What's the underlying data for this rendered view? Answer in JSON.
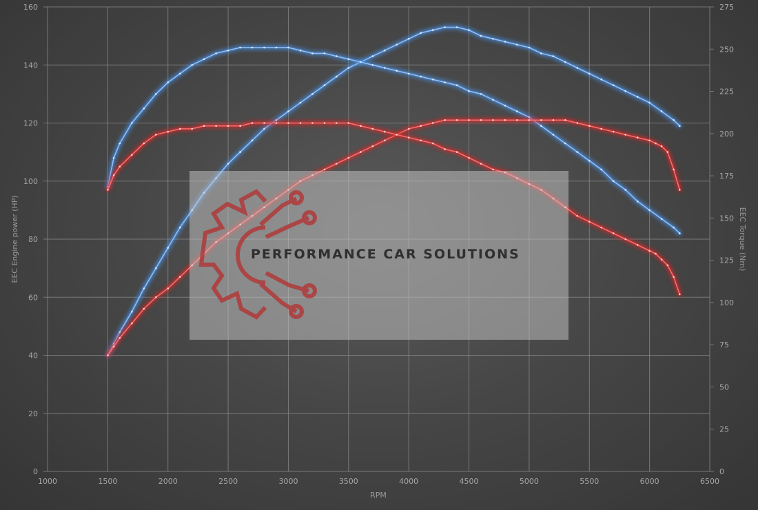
{
  "chart_data": {
    "type": "line",
    "title": "",
    "xlabel": "RPM",
    "ylabel_left": "EEC Engine power (HP)",
    "ylabel_right": "EEC Torque (Nm)",
    "xlim": [
      1000,
      6500
    ],
    "ylim_left": [
      0,
      160
    ],
    "ylim_right": [
      0,
      275
    ],
    "x_ticks": [
      "1000",
      "1500",
      "2000",
      "2500",
      "3000",
      "3500",
      "4000",
      "4500",
      "5000",
      "5500",
      "6000",
      "6500"
    ],
    "y_ticks_left": [
      "0",
      "20",
      "40",
      "60",
      "80",
      "100",
      "120",
      "140",
      "160"
    ],
    "y_ticks_right": [
      "0",
      "25",
      "50",
      "75",
      "100",
      "125",
      "150",
      "175",
      "200",
      "225",
      "250",
      "275"
    ],
    "grid": true,
    "legend": "none",
    "series": [
      {
        "axis": "left",
        "color": "#4a8ee0",
        "x": [
          1500,
          1550,
          1600,
          1700,
          1800,
          1900,
          2000,
          2100,
          2200,
          2300,
          2400,
          2500,
          2600,
          2700,
          2800,
          2900,
          3000,
          3100,
          3200,
          3300,
          3400,
          3500,
          3600,
          3700,
          3800,
          3900,
          4000,
          4100,
          4200,
          4300,
          4400,
          4500,
          4600,
          4700,
          4800,
          4900,
          5000,
          5100,
          5200,
          5300,
          5400,
          5500,
          5600,
          5700,
          5800,
          5900,
          6000,
          6100,
          6200,
          6250
        ],
        "y": [
          40,
          44,
          48,
          55,
          63,
          70,
          77,
          84,
          90,
          96,
          101,
          106,
          110,
          114,
          118,
          121,
          124,
          127,
          130,
          133,
          136,
          139,
          141,
          143,
          145,
          147,
          149,
          151,
          152,
          153,
          153,
          152,
          150,
          149,
          148,
          147,
          146,
          144,
          143,
          141,
          139,
          137,
          135,
          133,
          131,
          129,
          127,
          124,
          121,
          119
        ]
      },
      {
        "axis": "left",
        "color": "#4a8ee0",
        "x": [
          1500,
          1550,
          1600,
          1700,
          1800,
          1900,
          2000,
          2100,
          2200,
          2300,
          2400,
          2500,
          2600,
          2700,
          2800,
          2900,
          3000,
          3100,
          3200,
          3300,
          3400,
          3500,
          3600,
          3700,
          3800,
          3900,
          4000,
          4100,
          4200,
          4300,
          4400,
          4500,
          4600,
          4700,
          4800,
          4900,
          5000,
          5100,
          5200,
          5300,
          5400,
          5500,
          5600,
          5700,
          5800,
          5900,
          6000,
          6100,
          6200,
          6250
        ],
        "y": [
          98,
          108,
          113,
          120,
          125,
          130,
          134,
          137,
          140,
          142,
          144,
          145,
          146,
          146,
          146,
          146,
          146,
          145,
          144,
          144,
          143,
          142,
          141,
          140,
          139,
          138,
          137,
          136,
          135,
          134,
          133,
          131,
          130,
          128,
          126,
          124,
          122,
          119,
          116,
          113,
          110,
          107,
          104,
          100,
          97,
          93,
          90,
          87,
          84,
          82
        ]
      },
      {
        "axis": "left",
        "color": "#d42a2a",
        "x": [
          1500,
          1550,
          1600,
          1700,
          1800,
          1900,
          2000,
          2100,
          2200,
          2300,
          2400,
          2500,
          2600,
          2700,
          2800,
          2900,
          3000,
          3100,
          3200,
          3300,
          3400,
          3500,
          3600,
          3700,
          3800,
          3900,
          4000,
          4100,
          4200,
          4300,
          4400,
          4500,
          4600,
          4700,
          4800,
          4900,
          5000,
          5100,
          5200,
          5300,
          5400,
          5500,
          5600,
          5700,
          5800,
          5900,
          6000,
          6050,
          6100,
          6150,
          6200,
          6250
        ],
        "y": [
          40,
          43,
          46,
          51,
          56,
          60,
          63,
          67,
          71,
          75,
          79,
          82,
          85,
          88,
          91,
          94,
          97,
          100,
          102,
          104,
          106,
          108,
          110,
          112,
          114,
          116,
          118,
          119,
          120,
          121,
          121,
          121,
          121,
          121,
          121,
          121,
          121,
          121,
          121,
          121,
          120,
          119,
          118,
          117,
          116,
          115,
          114,
          113,
          112,
          110,
          104,
          97
        ]
      },
      {
        "axis": "left",
        "color": "#d42a2a",
        "x": [
          1500,
          1550,
          1600,
          1700,
          1800,
          1900,
          2000,
          2100,
          2200,
          2300,
          2400,
          2500,
          2600,
          2700,
          2800,
          2900,
          3000,
          3100,
          3200,
          3300,
          3400,
          3500,
          3600,
          3700,
          3800,
          3900,
          4000,
          4100,
          4200,
          4300,
          4400,
          4500,
          4600,
          4700,
          4800,
          4900,
          5000,
          5100,
          5200,
          5300,
          5400,
          5500,
          5600,
          5700,
          5800,
          5900,
          6000,
          6050,
          6100,
          6150,
          6200,
          6250
        ],
        "y": [
          97,
          102,
          105,
          109,
          113,
          116,
          117,
          118,
          118,
          119,
          119,
          119,
          119,
          120,
          120,
          120,
          120,
          120,
          120,
          120,
          120,
          120,
          119,
          118,
          117,
          116,
          115,
          114,
          113,
          111,
          110,
          108,
          106,
          104,
          103,
          101,
          99,
          97,
          94,
          91,
          88,
          86,
          84,
          82,
          80,
          78,
          76,
          75,
          73,
          71,
          67,
          61
        ]
      }
    ]
  },
  "watermark": {
    "text": "PERFORMANCE CAR SOLUTIONS",
    "logo_icon": "gear-circuit-icon",
    "logo_color": "#b03a3a"
  }
}
